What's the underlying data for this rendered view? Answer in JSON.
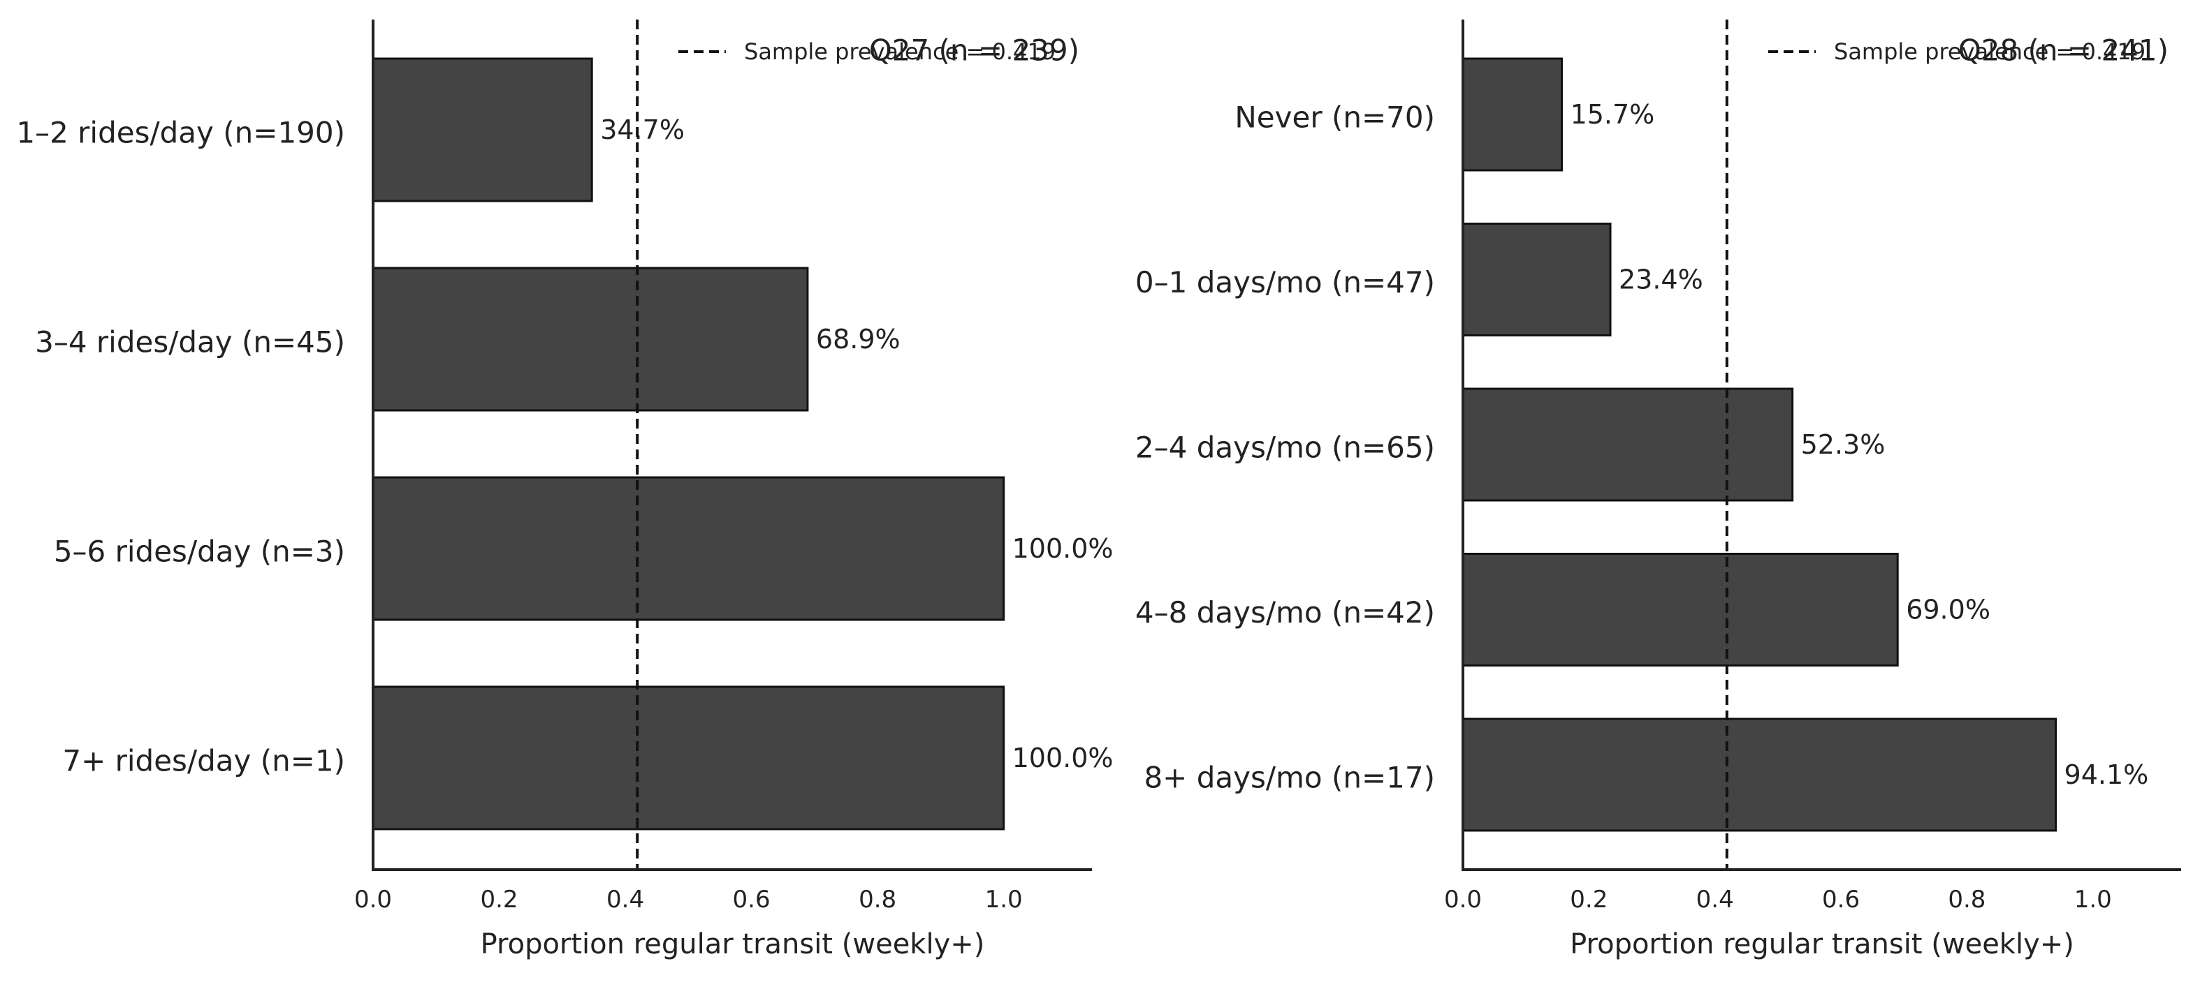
{
  "chart_data": [
    {
      "type": "bar",
      "orientation": "horizontal",
      "title": "Q27 (n = 239)",
      "xlabel": "Proportion regular transit (weekly+)",
      "ylabel": "",
      "xlim": [
        0,
        1.14
      ],
      "xticks": [
        0.0,
        0.2,
        0.4,
        0.6,
        0.8,
        1.0
      ],
      "xtick_labels": [
        "0.0",
        "0.2",
        "0.4",
        "0.6",
        "0.8",
        "1.0"
      ],
      "categories": [
        "1–2 rides/day (n=190)",
        "3–4 rides/day (n=45)",
        "5–6 rides/day (n=3)",
        "7+ rides/day (n=1)"
      ],
      "values": [
        0.347,
        0.689,
        1.0,
        1.0
      ],
      "data_labels": [
        "34.7%",
        "68.9%",
        "100.0%",
        "100.0%"
      ],
      "reference_line": {
        "x": 0.419,
        "style": "dashed",
        "label": "Sample prevalence = 0.419"
      },
      "legend_position": "top-right",
      "grid": false,
      "bar_color": "#444444"
    },
    {
      "type": "bar",
      "orientation": "horizontal",
      "title": "Q28 (n = 241)",
      "xlabel": "Proportion regular transit (weekly+)",
      "ylabel": "",
      "xlim": [
        0,
        1.14
      ],
      "xticks": [
        0.0,
        0.2,
        0.4,
        0.6,
        0.8,
        1.0
      ],
      "xtick_labels": [
        "0.0",
        "0.2",
        "0.4",
        "0.6",
        "0.8",
        "1.0"
      ],
      "categories": [
        "Never (n=70)",
        "0–1 days/mo (n=47)",
        "2–4 days/mo (n=65)",
        "4–8 days/mo (n=42)",
        "8+ days/mo (n=17)"
      ],
      "values": [
        0.157,
        0.234,
        0.523,
        0.69,
        0.941
      ],
      "data_labels": [
        "15.7%",
        "23.4%",
        "52.3%",
        "69.0%",
        "94.1%"
      ],
      "reference_line": {
        "x": 0.419,
        "style": "dashed",
        "label": "Sample prevalence = 0.419"
      },
      "legend_position": "top-right",
      "grid": false,
      "bar_color": "#444444"
    }
  ]
}
